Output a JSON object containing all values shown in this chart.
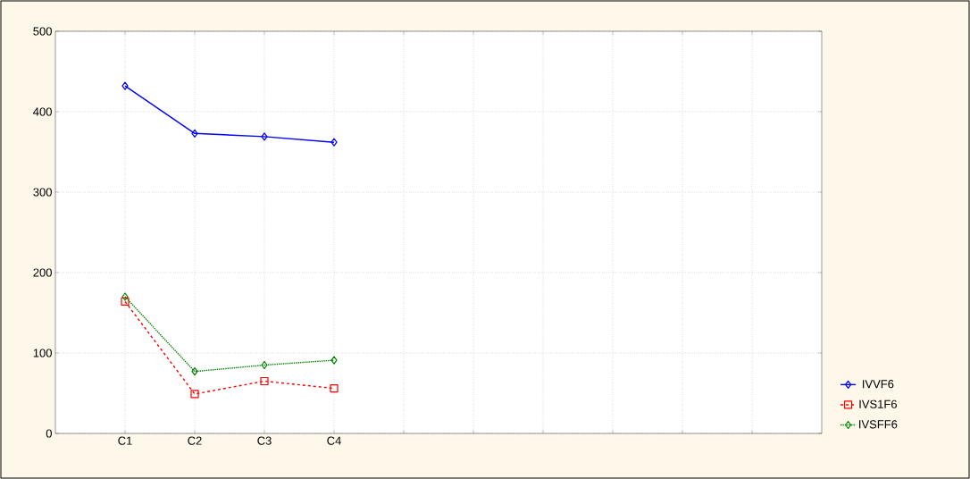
{
  "chart_data": {
    "type": "line",
    "categories": [
      "C1",
      "C2",
      "C3",
      "C4",
      null,
      null,
      null,
      null,
      null,
      null
    ],
    "ylim": [
      0,
      500
    ],
    "yticks": [
      0,
      100,
      200,
      300,
      400,
      500
    ],
    "grid": true,
    "legend": "right",
    "series": [
      {
        "name": "IVVF6",
        "color": "#0000ff",
        "marker": "diamond",
        "line_style": "solid",
        "values": [
          432,
          373,
          369,
          362,
          null,
          null,
          null,
          null,
          null,
          null
        ]
      },
      {
        "name": "IVS1F6",
        "color": "#ff0000",
        "marker": "square",
        "line_style": "dashed",
        "values": [
          164,
          49,
          65,
          56,
          null,
          null,
          null,
          null,
          null,
          null
        ]
      },
      {
        "name": "IVSFF6",
        "color": "#008000",
        "marker": "diamond",
        "line_style": "dotted",
        "values": [
          170,
          77,
          85,
          91,
          null,
          null,
          null,
          null,
          null,
          null
        ]
      }
    ]
  }
}
